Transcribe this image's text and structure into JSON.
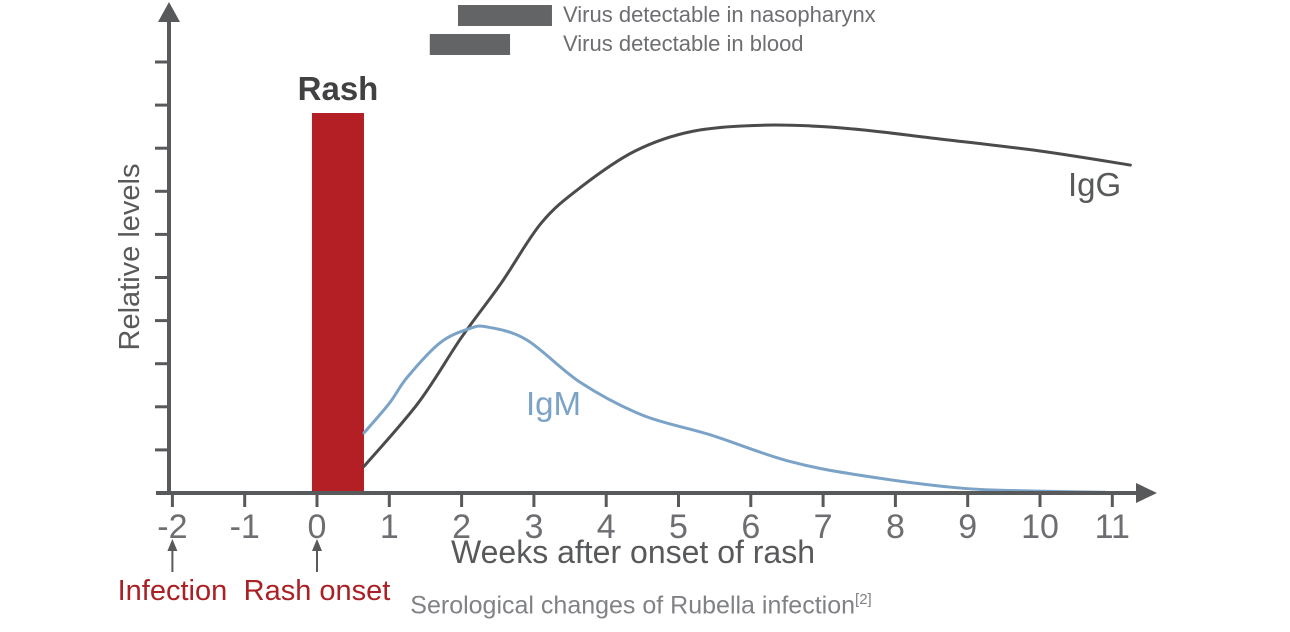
{
  "caption": {
    "text": "Serological changes of Rubella infection",
    "superscript": "[2]"
  },
  "colors": {
    "axis": "#58595b",
    "tick_label": "#6d6e71",
    "igg_curve": "#4b4b4d",
    "igm_curve": "#7ba2c7",
    "rash_bar": "#b41f25",
    "annotation_red": "#ab2025",
    "legend_bar": "#636466",
    "legend_text": "#6d6e71",
    "caption_text": "#808285",
    "rash_label": "#414042",
    "axis_label": "#58595b",
    "series_label_igg": "#58595b",
    "series_label_igm": "#7ba2c7"
  },
  "chart_data": {
    "type": "line",
    "title": "Serological changes of Rubella infection",
    "xlabel": "Weeks after onset of rash",
    "ylabel": "Relative levels",
    "x_ticks": [
      -2,
      -1,
      0,
      1,
      2,
      3,
      4,
      5,
      6,
      7,
      8,
      9,
      10,
      11
    ],
    "xlim": [
      -2,
      11.6
    ],
    "ylim": [
      0,
      1.05
    ],
    "grid": false,
    "y_axis_unlabeled_tick_count": 10,
    "rash_bar": {
      "label": "Rash",
      "x_start": -0.07,
      "x_end": 0.65,
      "height": 1.0
    },
    "detectable_spans": [
      {
        "label": "Virus detectable in nasopharynx",
        "weeks": [
          1.95,
          3.25
        ]
      },
      {
        "label": "Virus detectable in blood",
        "weeks": [
          1.56,
          2.67
        ]
      }
    ],
    "series": [
      {
        "name": "IgG",
        "points": [
          [
            0.65,
            0.07
          ],
          [
            1.4,
            0.237
          ],
          [
            2.0,
            0.41
          ],
          [
            2.55,
            0.553
          ],
          [
            3.1,
            0.71
          ],
          [
            3.65,
            0.805
          ],
          [
            4.4,
            0.9
          ],
          [
            5.2,
            0.952
          ],
          [
            6.2,
            0.968
          ],
          [
            7.3,
            0.96
          ],
          [
            8.6,
            0.932
          ],
          [
            10.0,
            0.9
          ],
          [
            11.25,
            0.863
          ]
        ]
      },
      {
        "name": "IgM",
        "points": [
          [
            0.65,
            0.158
          ],
          [
            1.0,
            0.236
          ],
          [
            1.25,
            0.305
          ],
          [
            1.7,
            0.395
          ],
          [
            2.1,
            0.432
          ],
          [
            2.35,
            0.437
          ],
          [
            2.9,
            0.403
          ],
          [
            3.65,
            0.29
          ],
          [
            4.5,
            0.205
          ],
          [
            5.44,
            0.153
          ],
          [
            6.5,
            0.085
          ],
          [
            7.5,
            0.047
          ],
          [
            8.9,
            0.013
          ],
          [
            10.0,
            0.005
          ],
          [
            10.9,
            0.002
          ]
        ]
      }
    ],
    "annotations": [
      {
        "label": "Infection",
        "week": -2
      },
      {
        "label": "Rash onset",
        "week": 0
      }
    ]
  }
}
